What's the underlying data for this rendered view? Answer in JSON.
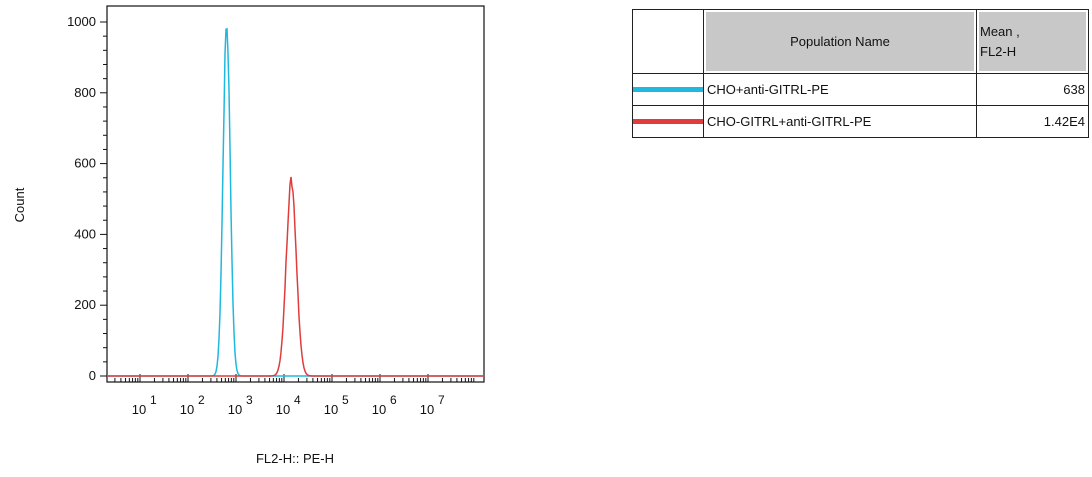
{
  "chart_data": {
    "type": "line",
    "title": "",
    "xlabel": "FL2-H:: PE-H",
    "ylabel": "Count",
    "xscale": "log",
    "xlim": [
      1,
      10000000
    ],
    "ylim": [
      0,
      1020
    ],
    "x_ticks": [
      {
        "base": "10",
        "exp": "1"
      },
      {
        "base": "10",
        "exp": "2"
      },
      {
        "base": "10",
        "exp": "3"
      },
      {
        "base": "10",
        "exp": "4"
      },
      {
        "base": "10",
        "exp": "5"
      },
      {
        "base": "10",
        "exp": "6"
      },
      {
        "base": "10",
        "exp": "7"
      }
    ],
    "y_ticks": [
      "0",
      "200",
      "400",
      "600",
      "800",
      "1000"
    ],
    "grid": false,
    "legend_placement": "right",
    "series": [
      {
        "name": "CHO+anti-GITRL-PE",
        "color": "#1fb8de",
        "peak_x": 638,
        "peak_count": 990,
        "log_sigma": 0.075
      },
      {
        "name": "CHO-GITRL+anti-GITRL-PE",
        "color": "#e03c3c",
        "peak_x": 14200,
        "peak_count": 550,
        "log_sigma": 0.105
      }
    ]
  },
  "legend_table": {
    "header_name": "Population Name",
    "header_mean_line1": "Mean ,",
    "header_mean_line2": "FL2-H",
    "rows": [
      {
        "name": "CHO+anti-GITRL-PE",
        "mean": "638",
        "color": "#1fb8de"
      },
      {
        "name": "CHO-GITRL+anti-GITRL-PE",
        "mean": "1.42E4",
        "color": "#e03c3c"
      }
    ]
  }
}
